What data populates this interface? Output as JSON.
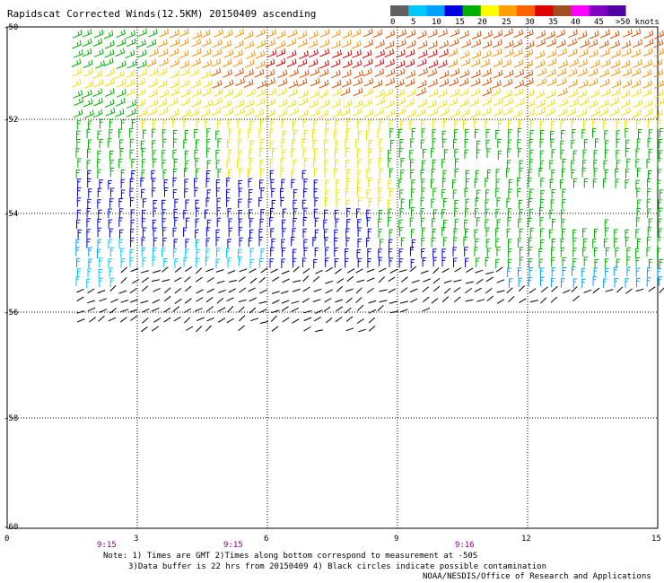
{
  "title": "Rapidscat Corrected Winds(12.5KM) 20150409 ascending",
  "legend": {
    "labels": [
      "0",
      "5",
      "10",
      "15",
      "20",
      "25",
      "30",
      "35",
      "40",
      "45",
      ">50 knots"
    ],
    "colors": [
      "#606060",
      "#00c8ff",
      "#00a0ff",
      "#0000e0",
      "#00b000",
      "#ffff00",
      "#ffa000",
      "#ff6000",
      "#e00000",
      "#a05020",
      "#ff00ff",
      "#8000c0",
      "#5000a0"
    ]
  },
  "axes": {
    "y_labels": [
      "-50",
      "-52",
      "-54",
      "-56",
      "-58",
      "-60"
    ],
    "x_labels": [
      "0",
      "3",
      "6",
      "9",
      "12",
      "15"
    ],
    "time_labels": [
      "9:15",
      "9:15",
      "9:16"
    ]
  },
  "notes": {
    "line1": "Note: 1) Times are GMT 2)Times along bottom correspond to measurement at -50S",
    "line2": "3)Data buffer is 22 hrs from 20150409 4) Black circles indicate possible contamination",
    "line3": "NOAA/NESDIS/Office of Research and Applications"
  },
  "wind_colors": {
    "black": "#000000",
    "cyan": "#00c8ff",
    "lightblue": "#00a0ff",
    "blue": "#0000e0",
    "green": "#00b000",
    "yellow": "#f0e000",
    "orange": "#ff9000",
    "darkorange": "#e05000",
    "red": "#e00000"
  }
}
